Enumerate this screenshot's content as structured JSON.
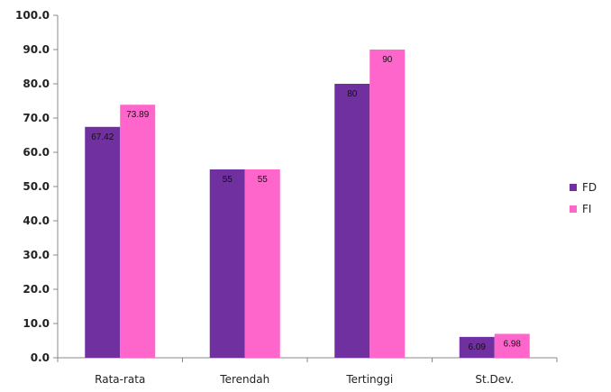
{
  "chart_data": {
    "type": "bar",
    "title": "",
    "xlabel": "",
    "ylabel": "",
    "ylim": [
      0,
      100
    ],
    "y_ticks": [
      "0.0",
      "10.0",
      "20.0",
      "30.0",
      "40.0",
      "50.0",
      "60.0",
      "70.0",
      "80.0",
      "90.0",
      "100.0"
    ],
    "categories": [
      "Rata-rata",
      "Terendah",
      "Tertinggi",
      "St.Dev."
    ],
    "series": [
      {
        "name": "FD",
        "color": "#7030a0",
        "values": [
          67.42,
          55,
          80,
          6.09
        ],
        "labels": [
          "67.42",
          "55",
          "80",
          "6.09"
        ]
      },
      {
        "name": "FI",
        "color": "#ff66cc",
        "values": [
          73.89,
          55,
          90,
          6.98
        ],
        "labels": [
          "73.89",
          "55",
          "90",
          "6.98"
        ]
      }
    ],
    "grid": false,
    "legend_position": "right"
  }
}
